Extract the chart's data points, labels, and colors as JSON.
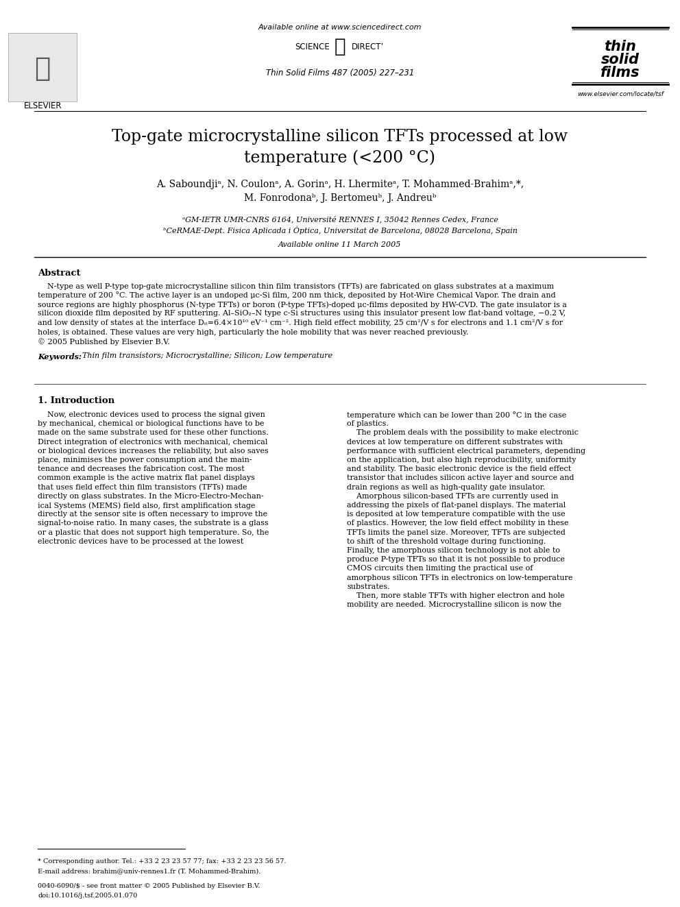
{
  "bg_color": "#ffffff",
  "header_available_online": "Available online at www.sciencedirect.com",
  "header_journal": "Thin Solid Films 487 (2005) 227–231",
  "elsevier_label": "ELSEVIER",
  "website": "www.elsevier.com/locate/tsf",
  "title_line1": "Top-gate microcrystalline silicon TFTs processed at low",
  "title_line2": "temperature (<200 °C)",
  "authors_line1": "A. Saboundjiᵃ, N. Coulonᵃ, A. Gorinᵃ, H. Lhermiteᵃ, T. Mohammed-Brahimᵃ,*,",
  "authors_line2": "M. Fonrodonaᵇ, J. Bertomeuᵇ, J. Andreuᵇ",
  "affil_a": "ᵃGM-IETR UMR-CNRS 6164, Université RENNES I, 35042 Rennes Cedex, France",
  "affil_b": "ᵇCeRMAE-Dept. Fisica Aplicada i Òptica, Universitat de Barcelona, 08028 Barcelona, Spain",
  "available_online_date": "Available online 11 March 2005",
  "abstract_title": "Abstract",
  "abstract_lines": [
    "    N-type as well P-type top-gate microcrystalline silicon thin film transistors (TFTs) are fabricated on glass substrates at a maximum",
    "temperature of 200 °C. The active layer is an undoped μc-Si film, 200 nm thick, deposited by Hot-Wire Chemical Vapor. The drain and",
    "source regions are highly phosphorus (N-type TFTs) or boron (P-type TFTs)-doped μc-films deposited by HW-CVD. The gate insulator is a",
    "silicon dioxide film deposited by RF sputtering. Al–SiO₂–N type c-Si structures using this insulator present low flat-band voltage, −0.2 V,",
    "and low density of states at the interface Dᵢₜ=6.4×10¹⁰ eV⁻¹ cm⁻². High field effect mobility, 25 cm²/V s for electrons and 1.1 cm²/V s for",
    "holes, is obtained. These values are very high, particularly the hole mobility that was never reached previously.",
    "© 2005 Published by Elsevier B.V."
  ],
  "keywords_label": "Keywords:",
  "keywords_text": "Thin film transistors; Microcrystalline; Silicon; Low temperature",
  "section1_title": "1. Introduction",
  "section1_col1_lines": [
    "    Now, electronic devices used to process the signal given",
    "by mechanical, chemical or biological functions have to be",
    "made on the same substrate used for these other functions.",
    "Direct integration of electronics with mechanical, chemical",
    "or biological devices increases the reliability, but also saves",
    "place, minimises the power consumption and the main-",
    "tenance and decreases the fabrication cost. The most",
    "common example is the active matrix flat panel displays",
    "that uses field effect thin film transistors (TFTs) made",
    "directly on glass substrates. In the Micro-Electro-Mechan-",
    "ical Systems (MEMS) field also, first amplification stage",
    "directly at the sensor site is often necessary to improve the",
    "signal-to-noise ratio. In many cases, the substrate is a glass",
    "or a plastic that does not support high temperature. So, the",
    "electronic devices have to be processed at the lowest"
  ],
  "section1_col2_lines": [
    "temperature which can be lower than 200 °C in the case",
    "of plastics.",
    "    The problem deals with the possibility to make electronic",
    "devices at low temperature on different substrates with",
    "performance with sufficient electrical parameters, depending",
    "on the application, but also high reproducibility, uniformity",
    "and stability. The basic electronic device is the field effect",
    "transistor that includes silicon active layer and source and",
    "drain regions as well as high-quality gate insulator.",
    "    Amorphous silicon-based TFTs are currently used in",
    "addressing the pixels of flat-panel displays. The material",
    "is deposited at low temperature compatible with the use",
    "of plastics. However, the low field effect mobility in these",
    "TFTs limits the panel size. Moreover, TFTs are subjected",
    "to shift of the threshold voltage during functioning.",
    "Finally, the amorphous silicon technology is not able to",
    "produce P-type TFTs so that it is not possible to produce",
    "CMOS circuits then limiting the practical use of",
    "amorphous silicon TFTs in electronics on low-temperature",
    "substrates.",
    "    Then, more stable TFTs with higher electron and hole",
    "mobility are needed. Microcrystalline silicon is now the"
  ],
  "footnote_star": "* Corresponding author. Tel.: +33 2 23 23 57 77; fax: +33 2 23 23 56 57.",
  "footnote_email": "E-mail address: brahim@univ-rennes1.fr (T. Mohammed-Brahim).",
  "footnote_issn": "0040-6090/$ - see front matter © 2005 Published by Elsevier B.V.",
  "footnote_doi": "doi:10.1016/j.tsf.2005.01.070"
}
